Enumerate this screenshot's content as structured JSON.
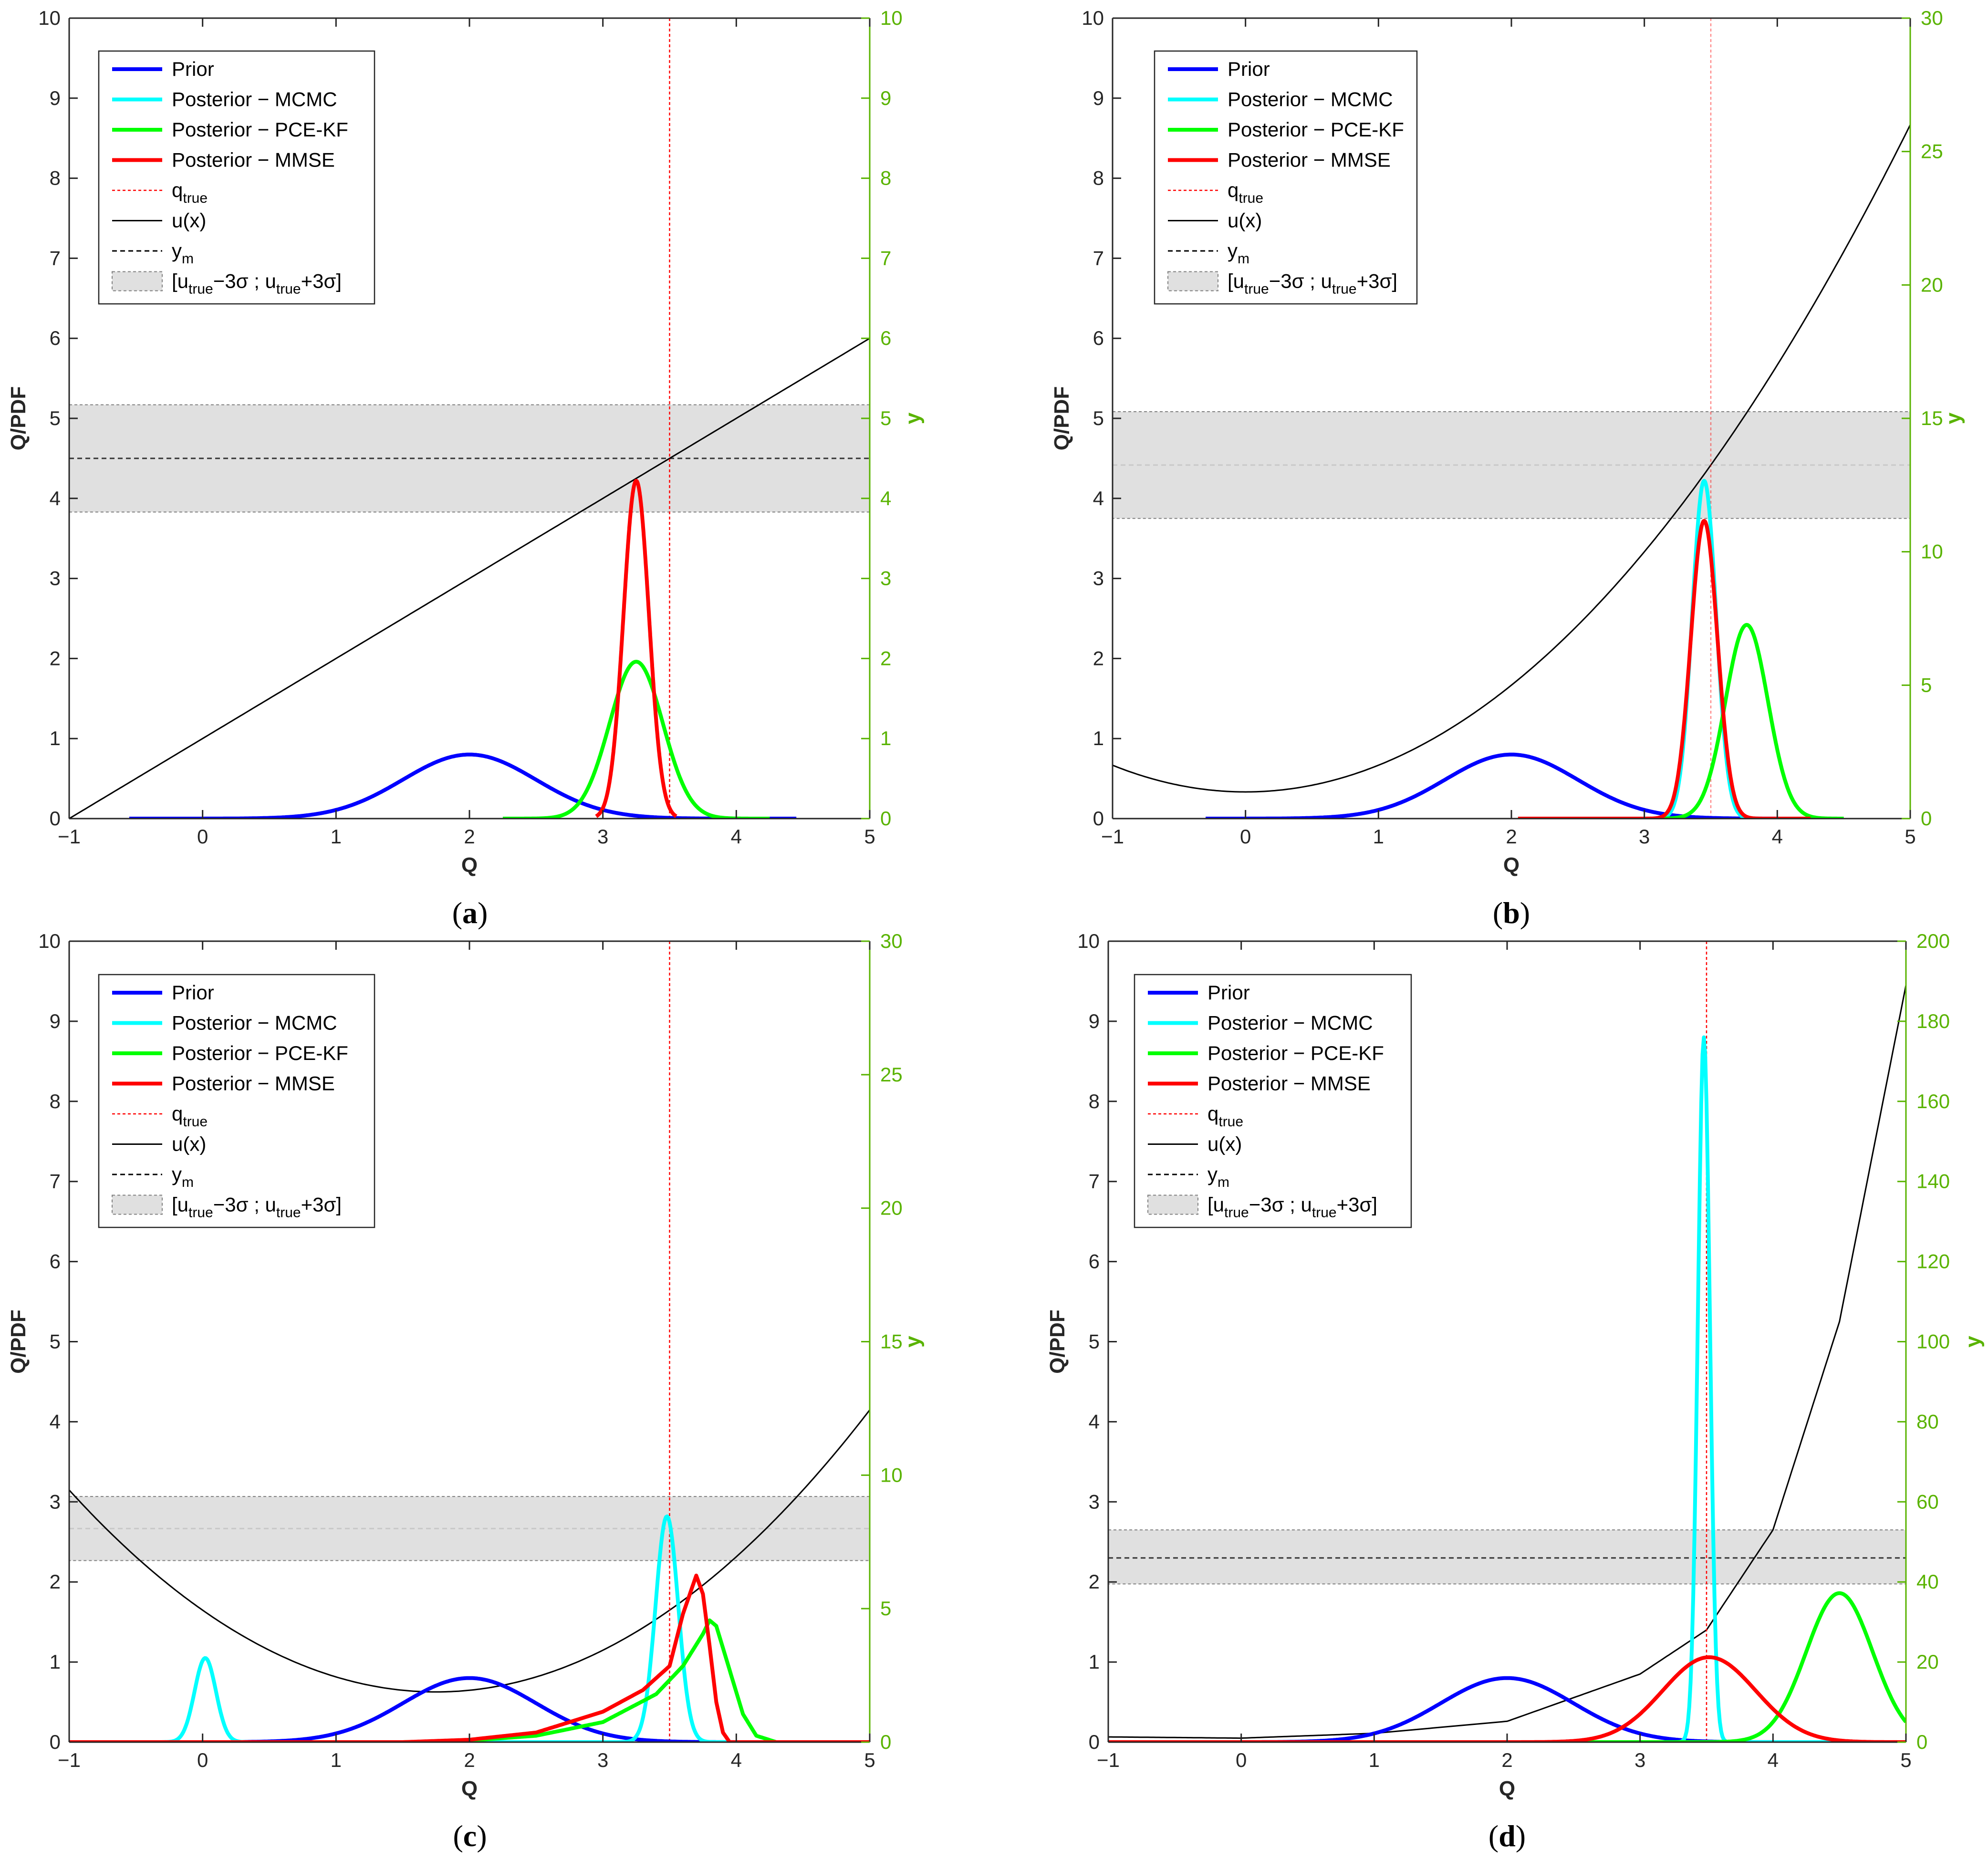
{
  "chart_data": [
    {
      "type": "line",
      "panel": "a",
      "xlabel": "Q",
      "ylabel": "Q/PDF",
      "ylabel_right": "y",
      "xlim": [
        -1,
        5
      ],
      "ylim": [
        0,
        10
      ],
      "ylim_right": [
        0,
        10
      ],
      "x_ticks": [
        "−1",
        "0",
        "1",
        "2",
        "3",
        "4",
        "5"
      ],
      "y_ticks": [
        "0",
        "1",
        "2",
        "3",
        "4",
        "5",
        "6",
        "7",
        "8",
        "9",
        "10"
      ],
      "y_ticks_right": [
        "0",
        "1",
        "2",
        "3",
        "4",
        "5",
        "6",
        "7",
        "8",
        "9",
        "10"
      ],
      "q_true": 3.5,
      "y_m": 4.5,
      "band": [
        3.83,
        5.17
      ],
      "u_x": {
        "x": [
          -1,
          5
        ],
        "y": [
          0,
          6
        ]
      },
      "series": [
        {
          "name": "Prior",
          "color": "#0000ff",
          "mean": 2.0,
          "std": 0.5,
          "peak": 0.8,
          "xrange": [
            -0.55,
            4.45
          ]
        },
        {
          "name": "Posterior − PCE-KF",
          "color": "#00ff00",
          "mean": 3.25,
          "std": 0.2,
          "peak": 1.96,
          "xrange": [
            2.25,
            4.25
          ]
        },
        {
          "name": "Posterior − MMSE",
          "color": "#ff0000",
          "mean": 3.25,
          "std": 0.095,
          "peak": 4.22,
          "xrange": [
            2.95,
            3.55
          ]
        }
      ]
    },
    {
      "type": "line",
      "panel": "b",
      "xlabel": "Q",
      "ylabel": "Q/PDF",
      "ylabel_right": "y",
      "xlim": [
        -1,
        5
      ],
      "ylim": [
        0,
        10
      ],
      "ylim_right": [
        0,
        30
      ],
      "x_ticks": [
        "−1",
        "0",
        "1",
        "2",
        "3",
        "4",
        "5"
      ],
      "y_ticks": [
        "0",
        "1",
        "2",
        "3",
        "4",
        "5",
        "6",
        "7",
        "8",
        "9",
        "10"
      ],
      "y_ticks_right": [
        "0",
        "5",
        "10",
        "15",
        "20",
        "25",
        "30"
      ],
      "q_true": 3.5,
      "y_m": 13.25,
      "band": [
        11.25,
        15.25
      ],
      "u_x": {
        "form": "quadratic",
        "a": 1.0,
        "b": 0,
        "c": 1.0
      },
      "series": [
        {
          "name": "Prior",
          "color": "#0000ff",
          "mean": 2.0,
          "std": 0.5,
          "peak": 0.8,
          "xrange": [
            -0.3,
            4.2
          ]
        },
        {
          "name": "Posterior − MCMC",
          "color": "#00ffff",
          "mean": 3.45,
          "std": 0.09,
          "peak": 4.22,
          "xrange": [
            2.05,
            4.25
          ]
        },
        {
          "name": "Posterior − PCE-KF",
          "color": "#00ff00",
          "mean": 3.77,
          "std": 0.16,
          "peak": 2.42,
          "xrange": [
            2.05,
            4.5
          ]
        },
        {
          "name": "Posterior − MMSE",
          "color": "#ff0000",
          "mean": 3.45,
          "std": 0.1,
          "peak": 3.72,
          "xrange": [
            2.05,
            4.25
          ]
        }
      ]
    },
    {
      "type": "line",
      "panel": "c",
      "xlabel": "Q",
      "ylabel": "Q/PDF",
      "ylabel_right": "y",
      "xlim": [
        -1,
        5
      ],
      "ylim": [
        0,
        10
      ],
      "ylim_right": [
        0,
        30
      ],
      "x_ticks": [
        "−1",
        "0",
        "1",
        "2",
        "3",
        "4",
        "5"
      ],
      "y_ticks": [
        "0",
        "1",
        "2",
        "3",
        "4",
        "5",
        "6",
        "7",
        "8",
        "9",
        "10"
      ],
      "y_ticks_right": [
        "0",
        "5",
        "10",
        "15",
        "20",
        "25",
        "30"
      ],
      "q_true": 3.5,
      "y_m": 8.0,
      "band": [
        6.8,
        9.2
      ],
      "u_x": {
        "form": "quadratic",
        "a": 1.0,
        "vertex": 1.75,
        "c": 1.88
      },
      "series": [
        {
          "name": "Prior",
          "color": "#0000ff",
          "mean": 2.0,
          "std": 0.5,
          "peak": 0.8,
          "xrange": [
            0.3,
            4.5
          ]
        },
        {
          "name": "Posterior − MCMC",
          "color": "#00ffff",
          "peaks": [
            {
              "mean": 0.02,
              "std": 0.08,
              "peak": 1.05
            },
            {
              "mean": 3.48,
              "std": 0.085,
              "peak": 2.82
            }
          ],
          "xrange": [
            -1,
            4.4
          ]
        },
        {
          "name": "Posterior − PCE-KF",
          "color": "#00ff00",
          "points": [
            [
              -1,
              0
            ],
            [
              1.5,
              0
            ],
            [
              2.0,
              0.02
            ],
            [
              2.5,
              0.08
            ],
            [
              3.0,
              0.25
            ],
            [
              3.4,
              0.6
            ],
            [
              3.6,
              0.95
            ],
            [
              3.75,
              1.35
            ],
            [
              3.8,
              1.52
            ],
            [
              3.85,
              1.45
            ],
            [
              3.95,
              0.9
            ],
            [
              4.05,
              0.35
            ],
            [
              4.15,
              0.08
            ],
            [
              4.3,
              0
            ]
          ]
        },
        {
          "name": "Posterior − MMSE",
          "color": "#ff0000",
          "points": [
            [
              -1,
              0
            ],
            [
              1.5,
              0
            ],
            [
              2.0,
              0.03
            ],
            [
              2.5,
              0.12
            ],
            [
              3.0,
              0.38
            ],
            [
              3.3,
              0.65
            ],
            [
              3.5,
              0.95
            ],
            [
              3.6,
              1.6
            ],
            [
              3.7,
              2.08
            ],
            [
              3.75,
              1.85
            ],
            [
              3.8,
              1.2
            ],
            [
              3.85,
              0.5
            ],
            [
              3.9,
              0.12
            ],
            [
              3.95,
              0
            ]
          ]
        }
      ]
    },
    {
      "type": "line",
      "panel": "d",
      "xlabel": "Q",
      "ylabel": "Q/PDF",
      "ylabel_right": "y",
      "xlim": [
        -1,
        5
      ],
      "ylim": [
        0,
        10
      ],
      "ylim_right": [
        0,
        200
      ],
      "x_ticks": [
        "−1",
        "0",
        "1",
        "2",
        "3",
        "4",
        "5"
      ],
      "y_ticks": [
        "0",
        "1",
        "2",
        "3",
        "4",
        "5",
        "6",
        "7",
        "8",
        "9",
        "10"
      ],
      "y_ticks_right": [
        "0",
        "20",
        "40",
        "60",
        "80",
        "100",
        "120",
        "140",
        "160",
        "180",
        "200"
      ],
      "q_true": 3.5,
      "y_m": 46,
      "band": [
        39.5,
        53
      ],
      "u_x": {
        "form": "cubic",
        "points": [
          [
            -1,
            1.3
          ],
          [
            0,
            1.0
          ],
          [
            1,
            2.2
          ],
          [
            2,
            5.2
          ],
          [
            3,
            17.0
          ],
          [
            3.5,
            28
          ],
          [
            4,
            53
          ],
          [
            4.5,
            105
          ],
          [
            5,
            189
          ]
        ]
      },
      "series": [
        {
          "name": "Prior",
          "color": "#0000ff",
          "mean": 2.0,
          "std": 0.5,
          "peak": 0.8,
          "xrange": [
            -1,
            5
          ]
        },
        {
          "name": "Posterior − MCMC",
          "color": "#00ffff",
          "mean": 3.48,
          "std": 0.045,
          "peak": 8.8,
          "xrange": [
            -1,
            5
          ]
        },
        {
          "name": "Posterior − PCE-KF",
          "color": "#00ff00",
          "mean": 4.5,
          "std": 0.25,
          "peak": 1.86,
          "xrange": [
            -1,
            5
          ]
        },
        {
          "name": "Posterior − MMSE",
          "color": "#ff0000",
          "mean": 3.52,
          "std": 0.35,
          "peak": 1.06,
          "xrange": [
            -1,
            5
          ]
        }
      ]
    }
  ],
  "legend": {
    "entries": [
      {
        "label": "Prior",
        "color": "#0000ff",
        "style": "solid-thick"
      },
      {
        "label": "Posterior − MCMC",
        "color": "#00ffff",
        "style": "solid-thick"
      },
      {
        "label": "Posterior − PCE-KF",
        "color": "#00ff00",
        "style": "solid-thick"
      },
      {
        "label": "Posterior − MMSE",
        "color": "#ff0000",
        "style": "solid-thick"
      },
      {
        "label": "q",
        "sub": "true",
        "color": "#ff0000",
        "style": "dotted"
      },
      {
        "label": "u(x)",
        "color": "#000000",
        "style": "solid-thin"
      },
      {
        "label": "y",
        "sub": "m",
        "color": "#000000",
        "style": "dashed"
      },
      {
        "label_parts": [
          "[u",
          "true",
          "−3σ ; u",
          "true",
          "+3σ]"
        ],
        "color": "#e6e6e6",
        "style": "patch"
      }
    ]
  },
  "panel_labels": [
    "a",
    "b",
    "c",
    "d"
  ],
  "colors": {
    "prior": "#0000ff",
    "mcmc": "#00ffff",
    "pcekf": "#00ff00",
    "mmse": "#ff0000",
    "right_axis": "#59b300",
    "band": "#e0e0e0"
  }
}
